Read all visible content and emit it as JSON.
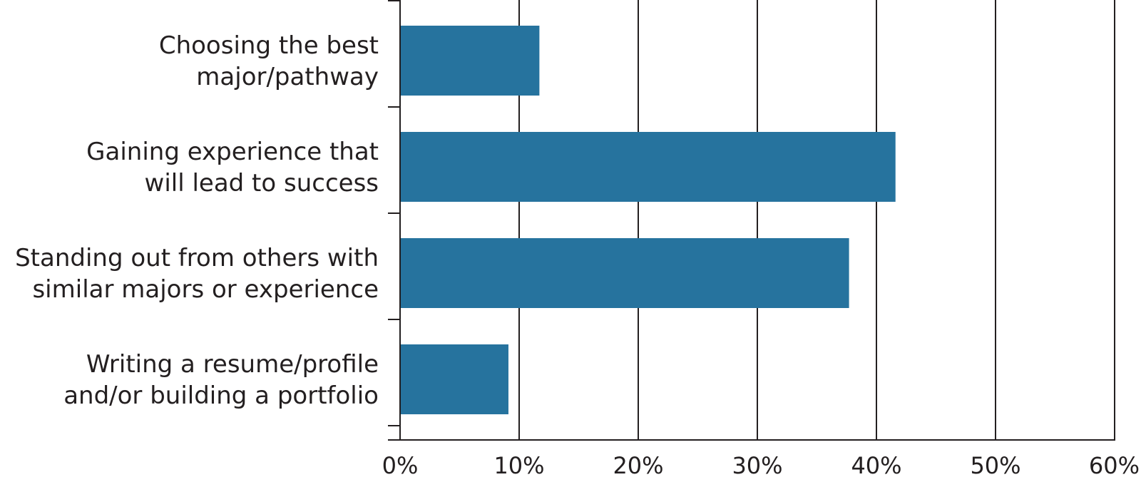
{
  "chart_data": {
    "type": "bar",
    "orientation": "horizontal",
    "title": "",
    "xlabel": "",
    "ylabel": "",
    "categories": [
      [
        "Choosing the best",
        "major/pathway"
      ],
      [
        "Gaining experience that",
        "will lead to success"
      ],
      [
        "Standing out from others with",
        "similar majors or experience"
      ],
      [
        "Writing a resume/profile",
        "and/or building a portfolio"
      ]
    ],
    "values": [
      11.7,
      41.6,
      37.7,
      9.1
    ],
    "xlim": [
      0,
      60
    ],
    "xticks": [
      0,
      10,
      20,
      30,
      40,
      50,
      60
    ],
    "xtick_labels": [
      "0%",
      "10%",
      "20%",
      "30%",
      "40%",
      "50%",
      "60%"
    ],
    "grid": "vertical",
    "legend": "none",
    "colors": {
      "bar": "#26739e",
      "axis": "#231f20",
      "grid": "#231f20",
      "text": "#231f20"
    }
  }
}
